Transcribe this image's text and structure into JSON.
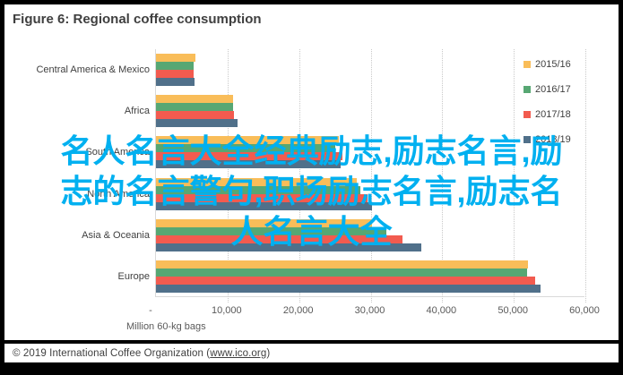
{
  "chart": {
    "title": "Figure 6: Regional coffee consumption",
    "axis_title": "Million 60-kg bags",
    "footer": {
      "prefix": "© 2019 International Coffee Organization (",
      "link": "www.ico.org",
      "suffix": ")"
    }
  },
  "overlay": {
    "color": "#00b0f0",
    "lines": [
      "名人名言大全经典励志,励志名言,励",
      "志的名言警句,职场励志名言,励志名",
      "人名言大全"
    ]
  },
  "chart_data": {
    "type": "bar",
    "orientation": "horizontal",
    "title": "Figure 6: Regional coffee consumption",
    "xlabel": "Million 60-kg bags",
    "ylabel": "",
    "xlim": [
      0,
      60000
    ],
    "x_ticks": [
      "-",
      "10,000",
      "20,000",
      "30,000",
      "40,000",
      "50,000",
      "60,000"
    ],
    "x_tick_values": [
      0,
      10000,
      20000,
      30000,
      40000,
      50000,
      60000
    ],
    "grid": "dotted-vertical-gridlines",
    "legend_position": "right",
    "categories": [
      "Central America & Mexico",
      "Africa",
      "South America",
      "North America",
      "Asia & Oceania",
      "Europe"
    ],
    "series": [
      {
        "name": "2015/16",
        "color": "#f9bd59",
        "values": [
          5500,
          10800,
          25500,
          28000,
          30200,
          52000
        ]
      },
      {
        "name": "2016/17",
        "color": "#57a773",
        "values": [
          5300,
          10800,
          25000,
          28500,
          32200,
          51800
        ]
      },
      {
        "name": "2017/18",
        "color": "#f25b4f",
        "values": [
          5300,
          10900,
          26000,
          29500,
          34500,
          53000
        ]
      },
      {
        "name": "2018/19",
        "color": "#50708a",
        "values": [
          5400,
          11400,
          25800,
          30200,
          37100,
          53700
        ]
      }
    ]
  }
}
